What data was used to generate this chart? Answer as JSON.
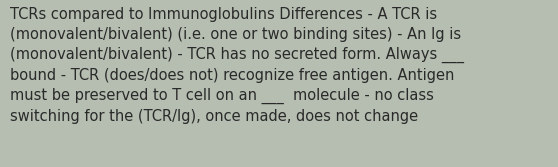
{
  "background_color": "#b5beb0",
  "text_color": "#2a2a2a",
  "font_size": 10.5,
  "text": "TCRs compared to Immunoglobulins Differences - A TCR is\n(monovalent/bivalent) (i.e. one or two binding sites) - An Ig is\n(monovalent/bivalent) - TCR has no secreted form. Always ___\nbound - TCR (does/does not) recognize free antigen. Antigen\nmust be preserved to T cell on an ___  molecule - no class\nswitching for the (TCR/Ig), once made, does not change",
  "figsize": [
    5.58,
    1.67
  ],
  "dpi": 100
}
